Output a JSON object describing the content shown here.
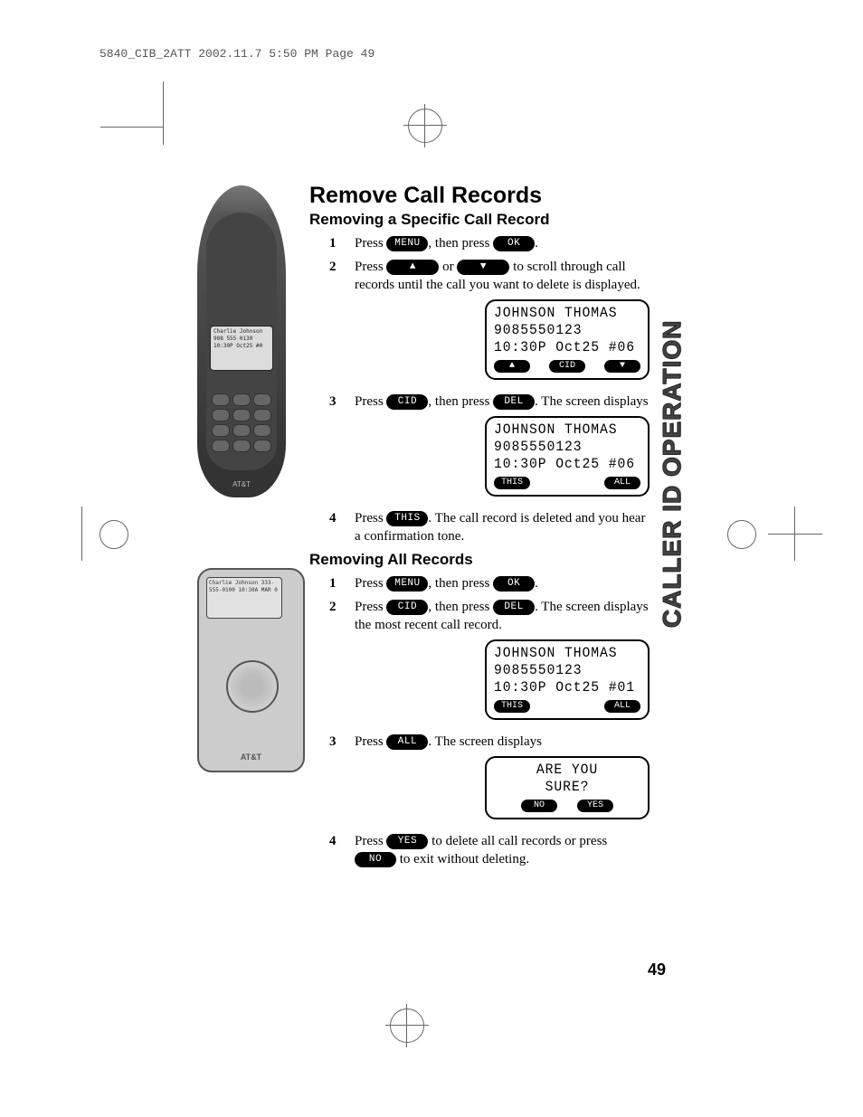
{
  "header": "5840_CIB_2ATT  2002.11.7  5:50 PM  Page 49",
  "sideTab": "CALLER ID OPERATION",
  "pageNumber": "49",
  "title": "Remove Call Records",
  "sectionA": {
    "heading": "Removing a Specific Call Record",
    "steps": [
      {
        "n": "1",
        "parts": [
          "Press ",
          {
            "key": "MENU"
          },
          ", then press ",
          {
            "key": "OK"
          },
          "."
        ]
      },
      {
        "n": "2",
        "parts": [
          "Press ",
          {
            "key": "▲",
            "cls": "arrow"
          },
          " or ",
          {
            "key": "▼",
            "cls": "arrow"
          },
          " to scroll through call records until the call you want to delete is displayed."
        ]
      },
      {
        "n": "3",
        "parts": [
          "Press ",
          {
            "key": "CID"
          },
          ", then press ",
          {
            "key": "DEL"
          },
          ". The screen displays"
        ]
      },
      {
        "n": "4",
        "parts": [
          "Press ",
          {
            "key": "THIS"
          },
          ". The call record is deleted and you hear a confirmation tone."
        ]
      }
    ],
    "lcd1": {
      "lines": [
        "JOHNSON THOMAS",
        "9085550123",
        "10:30P Oct25 #06"
      ],
      "softkeys": [
        "▲",
        "CID",
        "▼"
      ]
    },
    "lcd2": {
      "lines": [
        "JOHNSON THOMAS",
        "9085550123",
        "10:30P Oct25 #06"
      ],
      "softkeys": [
        "THIS",
        "",
        "ALL"
      ]
    }
  },
  "sectionB": {
    "heading": "Removing All Records",
    "steps": [
      {
        "n": "1",
        "parts": [
          "Press ",
          {
            "key": "MENU"
          },
          ", then press ",
          {
            "key": "OK"
          },
          "."
        ]
      },
      {
        "n": "2",
        "parts": [
          "Press ",
          {
            "key": "CID"
          },
          ", then press ",
          {
            "key": "DEL"
          },
          ". The screen displays the most recent call record."
        ]
      },
      {
        "n": "3",
        "parts": [
          "Press ",
          {
            "key": "ALL"
          },
          ". The screen displays"
        ]
      },
      {
        "n": "4",
        "parts": [
          "Press ",
          {
            "key": "YES"
          },
          " to delete all call records or press ",
          {
            "key": "NO"
          },
          " to exit without deleting."
        ]
      }
    ],
    "lcd1": {
      "lines": [
        "JOHNSON THOMAS",
        "9085550123",
        "10:30P Oct25 #01"
      ],
      "softkeys": [
        "THIS",
        "",
        "ALL"
      ]
    },
    "lcd2": {
      "lines": [
        "ARE YOU",
        "SURE?"
      ],
      "softkeys": [
        "",
        "NO",
        "YES",
        ""
      ]
    }
  },
  "handsetScreen": "Charlie Johnson\n908 555 0130\n10:30P Oct25 #0",
  "baseScreen": "Charlie Johnson\n333-555-0100\n10:30A MAR  0",
  "attLogo": "AT&T",
  "colors": {
    "text": "#000000",
    "keyBg": "#000000",
    "keyText": "#ffffff",
    "pageBg": "#ffffff",
    "phone": "#444444",
    "sideTab": "#444444"
  }
}
